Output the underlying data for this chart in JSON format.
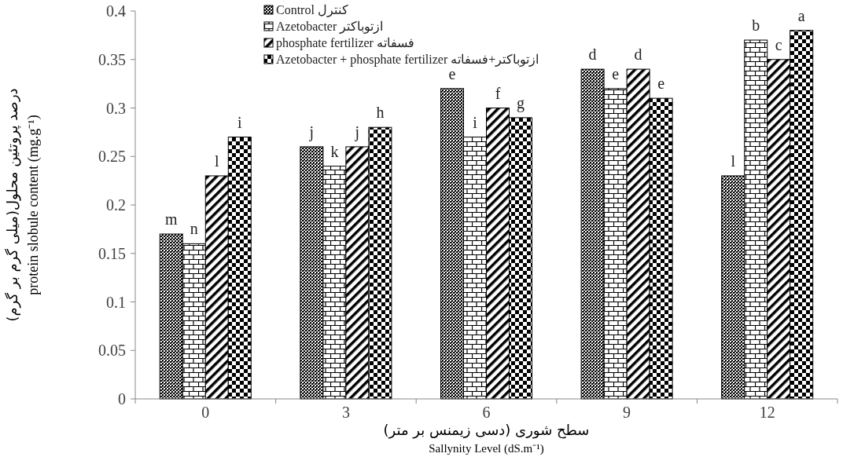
{
  "chart_data": {
    "type": "bar",
    "ylabel": "درصد پروتئین محلول(میلی گرم بر گرم)\nprotein slobule content (mg.g⁻¹)",
    "xlabel": "سطح شوری (دسی زیمنس بر متر)\nSallynity Level (dS.m⁻¹)",
    "categories": [
      "0",
      "3",
      "6",
      "9",
      "12"
    ],
    "series": [
      {
        "name": "Control کنترل",
        "color": "#000000",
        "values": [
          0.17,
          0.26,
          0.32,
          0.34,
          0.23
        ],
        "value_labels": [
          "m",
          "j",
          "e",
          "d",
          "l"
        ]
      },
      {
        "name": "Azetobacter  ازتوباکتر",
        "color": "#000000",
        "values": [
          0.16,
          0.24,
          0.27,
          0.32,
          0.37
        ],
        "value_labels": [
          "n",
          "k",
          "i",
          "e",
          "b"
        ]
      },
      {
        "name": "phosphate fertilizer فسفاته",
        "color": "#000000",
        "values": [
          0.23,
          0.26,
          0.3,
          0.34,
          0.35
        ],
        "value_labels": [
          "l",
          "j",
          "f",
          "d",
          "c"
        ]
      },
      {
        "name": "Azetobacter + phosphate fertilizer ازتوباکتر+فسفاته",
        "color": "#000000",
        "values": [
          0.27,
          0.28,
          0.29,
          0.31,
          0.38
        ],
        "value_labels": [
          "i",
          "h",
          "g",
          "e",
          "a"
        ]
      }
    ],
    "ylim": [
      0,
      0.4
    ],
    "yticks": [
      0,
      0.05,
      0.1,
      0.15,
      0.2,
      0.25,
      0.3,
      0.35,
      0.4
    ],
    "grid": false,
    "legend": "top"
  }
}
